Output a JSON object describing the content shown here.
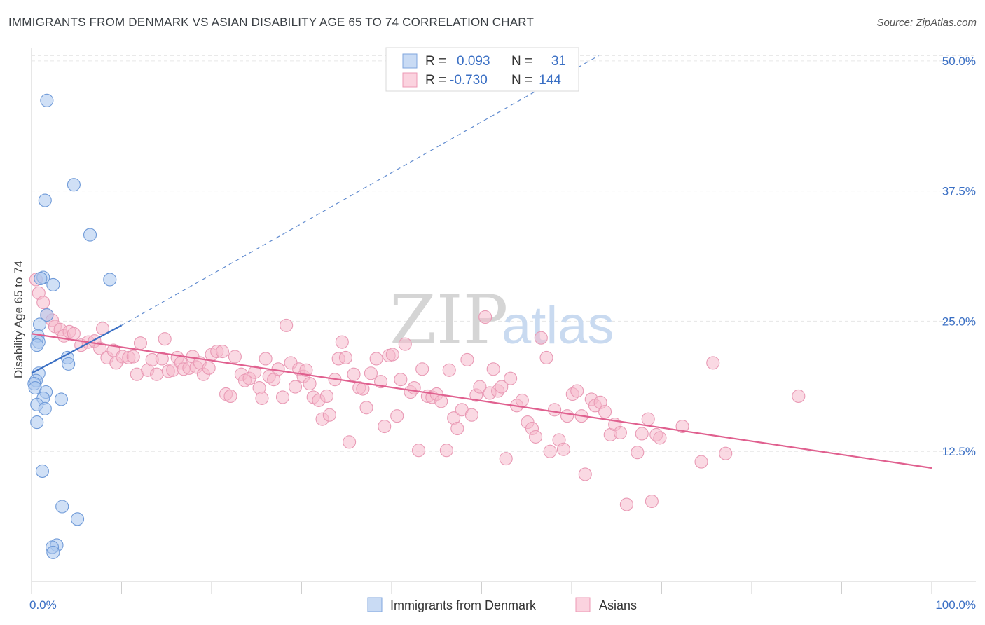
{
  "header": {
    "title": "IMMIGRANTS FROM DENMARK VS ASIAN DISABILITY AGE 65 TO 74 CORRELATION CHART",
    "source": "Source: ZipAtlas.com"
  },
  "watermark": {
    "zip": "ZIP",
    "atlas": "atlas"
  },
  "colors": {
    "blue": "#3a6fc4",
    "blue_fill": "#a9c6ef",
    "pink": "#e0608f",
    "pink_fill": "#f6b9cc",
    "grid": "#e6e6e6"
  },
  "legend": {
    "rows": [
      {
        "r_label": "R =",
        "r_value": "0.093",
        "n_label": "N =",
        "n_value": "31"
      },
      {
        "r_label": "R =",
        "r_value": "-0.730",
        "n_label": "N =",
        "n_value": "144"
      }
    ]
  },
  "chart_data": {
    "type": "scatter",
    "title": "IMMIGRANTS FROM DENMARK VS ASIAN DISABILITY AGE 65 TO 74 CORRELATION CHART",
    "xlabel": "",
    "ylabel": "Disability Age 65 to 74",
    "xlim": [
      0,
      100
    ],
    "ylim": [
      0,
      51
    ],
    "x_tick_labels": [
      "0.0%",
      "100.0%"
    ],
    "y_ticks": [
      12.5,
      25.0,
      37.5,
      50.0
    ],
    "y_tick_labels": [
      "12.5%",
      "25.0%",
      "37.5%",
      "50.0%"
    ],
    "grid": true,
    "legend_position": "bottom-center",
    "series": [
      {
        "name": "Immigrants from Denmark",
        "color": "#3a6fc4",
        "R": 0.093,
        "N": 31,
        "trend": {
          "x": [
            0,
            10
          ],
          "y": [
            20.0,
            24.6
          ],
          "extended_to": [
            63,
            50.5
          ]
        },
        "points": [
          [
            1.7,
            46.2
          ],
          [
            4.7,
            38.1
          ],
          [
            1.5,
            36.6
          ],
          [
            6.5,
            33.3
          ],
          [
            8.7,
            29.0
          ],
          [
            1.3,
            29.2
          ],
          [
            2.4,
            28.5
          ],
          [
            1.0,
            29.1
          ],
          [
            1.7,
            25.6
          ],
          [
            0.9,
            24.7
          ],
          [
            0.7,
            23.6
          ],
          [
            0.8,
            23.0
          ],
          [
            0.6,
            22.7
          ],
          [
            4.0,
            21.5
          ],
          [
            4.1,
            20.9
          ],
          [
            0.8,
            20.0
          ],
          [
            0.5,
            19.3
          ],
          [
            0.3,
            19.0
          ],
          [
            0.4,
            18.6
          ],
          [
            1.6,
            18.2
          ],
          [
            1.3,
            17.6
          ],
          [
            3.3,
            17.5
          ],
          [
            0.6,
            17.0
          ],
          [
            1.5,
            16.6
          ],
          [
            0.6,
            15.3
          ],
          [
            1.2,
            10.6
          ],
          [
            3.4,
            7.2
          ],
          [
            5.1,
            6.0
          ],
          [
            2.8,
            3.5
          ],
          [
            2.3,
            3.3
          ],
          [
            2.4,
            2.8
          ]
        ]
      },
      {
        "name": "Asians",
        "color": "#e0608f",
        "R": -0.73,
        "N": 144,
        "trend": {
          "x": [
            0,
            100
          ],
          "y": [
            23.8,
            10.9
          ]
        },
        "points": [
          [
            0.5,
            29.0
          ],
          [
            0.8,
            27.7
          ],
          [
            1.3,
            26.8
          ],
          [
            1.7,
            25.6
          ],
          [
            2.3,
            25.1
          ],
          [
            2.6,
            24.5
          ],
          [
            3.2,
            24.2
          ],
          [
            3.6,
            23.6
          ],
          [
            4.2,
            24.0
          ],
          [
            4.7,
            23.8
          ],
          [
            5.5,
            22.7
          ],
          [
            6.3,
            23.0
          ],
          [
            7.0,
            23.1
          ],
          [
            7.6,
            22.4
          ],
          [
            7.9,
            24.3
          ],
          [
            8.4,
            21.5
          ],
          [
            9.1,
            22.2
          ],
          [
            9.4,
            21.0
          ],
          [
            10.1,
            21.6
          ],
          [
            10.8,
            21.5
          ],
          [
            11.3,
            21.6
          ],
          [
            11.7,
            19.9
          ],
          [
            12.1,
            22.9
          ],
          [
            12.9,
            20.3
          ],
          [
            13.4,
            21.3
          ],
          [
            13.9,
            19.9
          ],
          [
            14.5,
            21.4
          ],
          [
            14.8,
            23.3
          ],
          [
            15.2,
            20.2
          ],
          [
            15.7,
            20.3
          ],
          [
            16.2,
            21.5
          ],
          [
            16.6,
            21.0
          ],
          [
            16.9,
            20.4
          ],
          [
            17.5,
            20.5
          ],
          [
            17.9,
            21.6
          ],
          [
            18.3,
            20.6
          ],
          [
            18.7,
            21.0
          ],
          [
            19.1,
            19.9
          ],
          [
            19.7,
            20.5
          ],
          [
            20.0,
            21.8
          ],
          [
            20.6,
            22.1
          ],
          [
            21.2,
            22.1
          ],
          [
            21.6,
            18.0
          ],
          [
            22.1,
            17.8
          ],
          [
            22.6,
            21.6
          ],
          [
            23.3,
            19.9
          ],
          [
            23.7,
            19.3
          ],
          [
            24.2,
            19.5
          ],
          [
            24.8,
            20.1
          ],
          [
            25.3,
            18.6
          ],
          [
            25.6,
            17.6
          ],
          [
            26.0,
            21.4
          ],
          [
            26.4,
            19.7
          ],
          [
            26.9,
            19.4
          ],
          [
            27.4,
            20.4
          ],
          [
            27.9,
            17.7
          ],
          [
            28.3,
            24.6
          ],
          [
            28.8,
            21.0
          ],
          [
            29.3,
            18.7
          ],
          [
            29.7,
            20.4
          ],
          [
            30.2,
            19.7
          ],
          [
            30.5,
            20.3
          ],
          [
            30.9,
            19.0
          ],
          [
            31.3,
            17.7
          ],
          [
            31.9,
            17.4
          ],
          [
            32.3,
            15.6
          ],
          [
            32.8,
            17.8
          ],
          [
            33.1,
            16.0
          ],
          [
            33.7,
            19.4
          ],
          [
            34.1,
            21.4
          ],
          [
            34.5,
            23.0
          ],
          [
            34.9,
            21.5
          ],
          [
            35.3,
            13.4
          ],
          [
            35.8,
            19.9
          ],
          [
            36.4,
            18.6
          ],
          [
            36.8,
            18.5
          ],
          [
            37.2,
            16.7
          ],
          [
            37.7,
            20.0
          ],
          [
            38.3,
            21.4
          ],
          [
            38.8,
            19.2
          ],
          [
            39.2,
            14.9
          ],
          [
            39.7,
            21.7
          ],
          [
            40.1,
            21.8
          ],
          [
            40.6,
            15.9
          ],
          [
            41.0,
            19.4
          ],
          [
            41.5,
            22.8
          ],
          [
            42.1,
            18.2
          ],
          [
            42.5,
            18.6
          ],
          [
            43.0,
            12.6
          ],
          [
            43.4,
            20.4
          ],
          [
            44.0,
            17.8
          ],
          [
            44.5,
            17.7
          ],
          [
            45.0,
            18.0
          ],
          [
            45.5,
            17.3
          ],
          [
            46.1,
            12.6
          ],
          [
            46.4,
            20.3
          ],
          [
            46.9,
            15.7
          ],
          [
            47.3,
            14.7
          ],
          [
            47.8,
            16.5
          ],
          [
            48.4,
            21.3
          ],
          [
            48.9,
            16.0
          ],
          [
            49.4,
            17.9
          ],
          [
            49.8,
            18.7
          ],
          [
            50.4,
            25.4
          ],
          [
            50.9,
            18.1
          ],
          [
            51.3,
            20.4
          ],
          [
            51.8,
            18.3
          ],
          [
            52.2,
            18.7
          ],
          [
            52.7,
            11.8
          ],
          [
            53.2,
            19.5
          ],
          [
            53.9,
            16.9
          ],
          [
            54.5,
            17.4
          ],
          [
            55.1,
            15.3
          ],
          [
            55.6,
            14.7
          ],
          [
            56.0,
            13.9
          ],
          [
            56.6,
            23.4
          ],
          [
            57.2,
            21.5
          ],
          [
            57.6,
            12.5
          ],
          [
            58.1,
            16.5
          ],
          [
            58.6,
            13.6
          ],
          [
            59.1,
            12.7
          ],
          [
            59.5,
            15.9
          ],
          [
            60.1,
            18.0
          ],
          [
            60.6,
            18.3
          ],
          [
            61.1,
            15.9
          ],
          [
            61.5,
            10.3
          ],
          [
            62.2,
            17.5
          ],
          [
            62.6,
            16.9
          ],
          [
            63.2,
            17.2
          ],
          [
            63.7,
            16.3
          ],
          [
            64.3,
            14.1
          ],
          [
            64.8,
            15.1
          ],
          [
            65.4,
            14.3
          ],
          [
            66.1,
            7.4
          ],
          [
            67.3,
            12.4
          ],
          [
            67.8,
            14.2
          ],
          [
            68.5,
            15.6
          ],
          [
            68.9,
            7.7
          ],
          [
            69.4,
            14.1
          ],
          [
            69.8,
            13.8
          ],
          [
            72.3,
            14.9
          ],
          [
            74.4,
            11.5
          ],
          [
            77.1,
            12.3
          ],
          [
            75.7,
            21.0
          ],
          [
            85.2,
            17.8
          ]
        ]
      }
    ]
  },
  "bottom_legend": {
    "items": [
      {
        "label": "Immigrants from Denmark"
      },
      {
        "label": "Asians"
      }
    ]
  }
}
